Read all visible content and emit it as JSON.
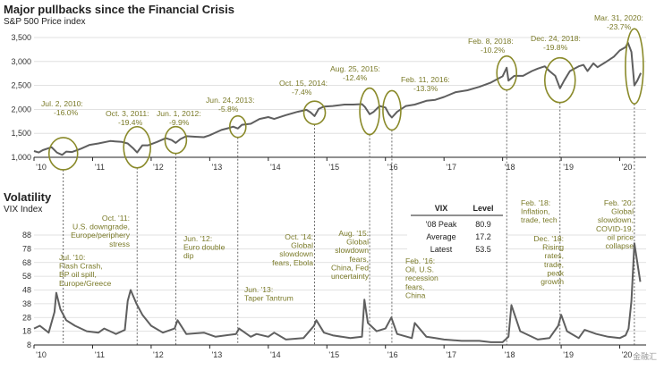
{
  "watermark": "金融汇",
  "chart_data": [
    {
      "type": "line",
      "title": "Major pullbacks since the Financial Crisis",
      "ylabel": "S&P 500 Price index",
      "ylim": [
        1000,
        3500
      ],
      "yticks": [
        "1,000",
        "1,500",
        "2,000",
        "2,500",
        "3,000",
        "3,500"
      ],
      "ytick_values": [
        1000,
        1500,
        2000,
        2500,
        3000,
        3500
      ],
      "xlim": [
        2010,
        2020.45
      ],
      "xticks": [
        "'10",
        "'11",
        "'12",
        "'13",
        "'14",
        "'15",
        "'16",
        "'17",
        "'18",
        "'19",
        "'20"
      ],
      "xtick_values": [
        2010,
        2011,
        2012,
        2013,
        2014,
        2015,
        2016,
        2017,
        2018,
        2019,
        2020
      ],
      "grid": "horizontal",
      "line_color": "#5f5f5f",
      "series": [
        {
          "x": [
            2010.0,
            2010.08,
            2010.15,
            2010.3,
            2010.39,
            2010.48,
            2010.55,
            2010.65,
            2010.8,
            2010.95,
            2011.1,
            2011.3,
            2011.5,
            2011.6,
            2011.7,
            2011.76,
            2011.85,
            2011.95,
            2012.1,
            2012.25,
            2012.35,
            2012.42,
            2012.5,
            2012.6,
            2012.75,
            2012.9,
            2013.0,
            2013.2,
            2013.35,
            2013.4,
            2013.48,
            2013.55,
            2013.7,
            2013.85,
            2014.0,
            2014.1,
            2014.3,
            2014.5,
            2014.65,
            2014.72,
            2014.79,
            2014.86,
            2014.95,
            2015.1,
            2015.3,
            2015.45,
            2015.6,
            2015.65,
            2015.73,
            2015.8,
            2015.9,
            2016.0,
            2016.06,
            2016.11,
            2016.2,
            2016.35,
            2016.5,
            2016.7,
            2016.85,
            2017.0,
            2017.2,
            2017.4,
            2017.6,
            2017.8,
            2018.0,
            2018.07,
            2018.1,
            2018.2,
            2018.35,
            2018.5,
            2018.6,
            2018.72,
            2018.8,
            2018.9,
            2018.98,
            2019.05,
            2019.15,
            2019.3,
            2019.38,
            2019.45,
            2019.55,
            2019.62,
            2019.75,
            2019.9,
            2020.0,
            2020.1,
            2020.14,
            2020.2,
            2020.25,
            2020.3,
            2020.36
          ],
          "y": [
            1130,
            1100,
            1150,
            1210,
            1100,
            1050,
            1120,
            1110,
            1180,
            1260,
            1290,
            1340,
            1320,
            1290,
            1180,
            1100,
            1250,
            1250,
            1320,
            1400,
            1360,
            1300,
            1380,
            1440,
            1430,
            1420,
            1460,
            1570,
            1620,
            1640,
            1600,
            1680,
            1700,
            1800,
            1840,
            1800,
            1880,
            1950,
            1990,
            1940,
            1860,
            2010,
            2060,
            2070,
            2100,
            2100,
            2110,
            2050,
            1900,
            1950,
            2070,
            2040,
            1900,
            1830,
            1950,
            2070,
            2100,
            2180,
            2200,
            2260,
            2360,
            2400,
            2470,
            2560,
            2690,
            2870,
            2600,
            2700,
            2700,
            2800,
            2850,
            2900,
            2800,
            2700,
            2440,
            2600,
            2800,
            2900,
            2930,
            2800,
            2960,
            2880,
            2980,
            3100,
            3230,
            3300,
            3390,
            3200,
            2500,
            2600,
            2760
          ]
        }
      ],
      "annotations": [
        {
          "date": "Jul. 2, 2010:",
          "change": "-16.0%"
        },
        {
          "date": "Oct. 3, 2011:",
          "change": "-19.4%"
        },
        {
          "date": "Jun. 1, 2012:",
          "change": "-9.9%"
        },
        {
          "date": "Jun. 24, 2013:",
          "change": "-5.8%"
        },
        {
          "date": "Oct. 15, 2014:",
          "change": "-7.4%"
        },
        {
          "date": "Aug. 25, 2015:",
          "change": "-12.4%"
        },
        {
          "date": "Feb. 11, 2016:",
          "change": "-13.3%"
        },
        {
          "date": "Feb. 8, 2018:",
          "change": "-10.2%"
        },
        {
          "date": "Dec. 24, 2018:",
          "change": "-19.8%"
        },
        {
          "date": "Mar. 31, 2020:",
          "change": "-23.7%"
        }
      ]
    },
    {
      "type": "line",
      "title": "Volatility",
      "ylabel": "VIX Index",
      "ylim": [
        8,
        88
      ],
      "yticks": [
        "8",
        "18",
        "28",
        "38",
        "48",
        "58",
        "68",
        "78",
        "88"
      ],
      "ytick_values": [
        8,
        18,
        28,
        38,
        48,
        58,
        68,
        78,
        88
      ],
      "xlim": [
        2010,
        2020.45
      ],
      "xticks": [
        "'10",
        "'11",
        "'12",
        "'13",
        "'14",
        "'15",
        "'16",
        "'17",
        "'18",
        "'19",
        "'20"
      ],
      "xtick_values": [
        2010,
        2011,
        2012,
        2013,
        2014,
        2015,
        2016,
        2017,
        2018,
        2019,
        2020
      ],
      "grid": "horizontal",
      "line_color": "#5f5f5f",
      "series": [
        {
          "x": [
            2010.0,
            2010.1,
            2010.25,
            2010.35,
            2010.38,
            2010.45,
            2010.55,
            2010.7,
            2010.9,
            2011.1,
            2011.2,
            2011.4,
            2011.55,
            2011.6,
            2011.65,
            2011.75,
            2011.85,
            2012.0,
            2012.2,
            2012.4,
            2012.45,
            2012.6,
            2012.9,
            2013.1,
            2013.45,
            2013.5,
            2013.7,
            2013.8,
            2014.0,
            2014.1,
            2014.3,
            2014.6,
            2014.78,
            2014.82,
            2014.95,
            2015.1,
            2015.4,
            2015.6,
            2015.64,
            2015.7,
            2015.85,
            2016.0,
            2016.1,
            2016.2,
            2016.45,
            2016.5,
            2016.7,
            2016.85,
            2017.0,
            2017.3,
            2017.6,
            2017.8,
            2018.0,
            2018.1,
            2018.15,
            2018.3,
            2018.6,
            2018.8,
            2018.95,
            2019.0,
            2019.1,
            2019.3,
            2019.4,
            2019.6,
            2019.8,
            2020.0,
            2020.1,
            2020.15,
            2020.2,
            2020.25,
            2020.3,
            2020.35
          ],
          "y": [
            20,
            22,
            17,
            32,
            46,
            34,
            26,
            22,
            18,
            17,
            20,
            16,
            19,
            40,
            48,
            38,
            30,
            22,
            17,
            20,
            26,
            16,
            17,
            14,
            16,
            20,
            14,
            16,
            14,
            17,
            12,
            13,
            22,
            26,
            17,
            15,
            13,
            14,
            41,
            24,
            18,
            20,
            28,
            16,
            13,
            24,
            14,
            13,
            12,
            11,
            11,
            10,
            10,
            14,
            37,
            18,
            12,
            13,
            22,
            30,
            18,
            13,
            19,
            16,
            14,
            13,
            15,
            20,
            40,
            82,
            68,
            54
          ]
        }
      ],
      "annotations": [
        {
          "text": "Jul. '10: Flash Crash, BP oil spill, Europe/Greece"
        },
        {
          "text": "Oct. '11: U.S. downgrade, Europe/periphery stress"
        },
        {
          "text": "Jun. '12: Euro double dip"
        },
        {
          "text": "Jun. '13: Taper Tantrum"
        },
        {
          "text": "Oct. '14: Global slowdown fears, Ebola"
        },
        {
          "text": "Aug. '15: Global slowdown fears, China, Fed uncertainty"
        },
        {
          "text": "Feb. '16: Oil, U.S. recession fears, China"
        },
        {
          "text": "Feb. '18: Inflation, trade, tech"
        },
        {
          "text": "Dec. '18: Rising rates, trade, peak growth"
        },
        {
          "text": "Feb. '20: Global slowdown, COVID-19, oil price collapse"
        }
      ],
      "table": {
        "headers": [
          "VIX",
          "Level"
        ],
        "rows": [
          [
            "'08 Peak",
            "80.9"
          ],
          [
            "Average",
            "17.2"
          ],
          [
            "Latest",
            "53.5"
          ]
        ]
      }
    }
  ]
}
